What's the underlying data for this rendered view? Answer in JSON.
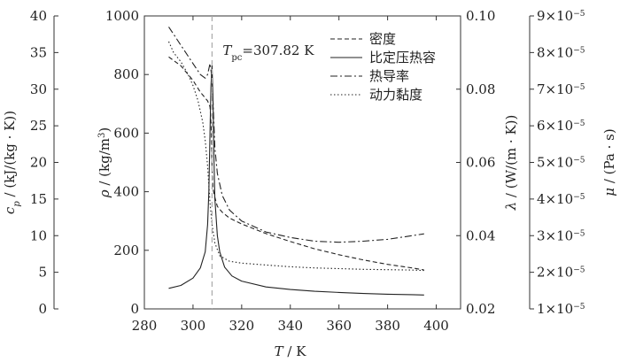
{
  "chart_data": {
    "type": "line",
    "annotation": {
      "text": "=307.82 K",
      "symbol": "T",
      "subscript": "pc",
      "x": 307.82
    },
    "xaxis": {
      "label_symbol": "T",
      "label_unit": " / K",
      "lim": [
        280,
        410
      ],
      "ticks": [
        280,
        300,
        320,
        340,
        360,
        380,
        400
      ]
    },
    "y_rho": {
      "label_symbol": "ρ",
      "label_unit": " / (kg/m",
      "label_sup": "3",
      "label_tail": ")",
      "lim": [
        0,
        1000
      ],
      "ticks": [
        0,
        200,
        400,
        600,
        800,
        1000
      ]
    },
    "y_cp": {
      "label_symbol": "c",
      "label_sub": "p",
      "label_unit": " / (kJ/(kg · K))",
      "lim": [
        0,
        40
      ],
      "ticks": [
        0,
        5,
        10,
        15,
        20,
        25,
        30,
        35,
        40
      ]
    },
    "y_lambda": {
      "label_symbol": "λ",
      "label_unit": " / (W/(m · K))",
      "lim": [
        0.02,
        0.1
      ],
      "ticks": [
        0.02,
        0.04,
        0.06,
        0.08,
        0.1
      ],
      "tick_labels": [
        "0.02",
        "0.04",
        "0.06",
        "0.08",
        "0.10"
      ]
    },
    "y_mu": {
      "label_symbol": "μ",
      "label_unit": " / (Pa · s)",
      "lim": [
        1e-05,
        9e-05
      ],
      "ticks": [
        1e-05,
        2e-05,
        3e-05,
        4e-05,
        5e-05,
        6e-05,
        7e-05,
        8e-05,
        9e-05
      ],
      "tick_mantissas": [
        "1",
        "2",
        "3",
        "4",
        "5",
        "6",
        "7",
        "8",
        "9"
      ],
      "tick_base": "×10",
      "tick_exp": "−5"
    },
    "legend": {
      "position": "top-right",
      "entries": [
        "密度",
        "比定压热容",
        "热导率",
        "动力黏度"
      ]
    },
    "series": [
      {
        "name": "密度",
        "axis": "y_rho",
        "style": "dashed",
        "x": [
          290,
          295,
          300,
          303,
          305,
          306,
          307,
          307.5,
          307.82,
          308.2,
          309,
          310,
          312,
          315,
          320,
          330,
          340,
          350,
          360,
          370,
          380,
          390,
          395
        ],
        "y": [
          860,
          830,
          780,
          740,
          720,
          710,
          690,
          620,
          480,
          410,
          380,
          350,
          330,
          310,
          290,
          257,
          230,
          205,
          185,
          167,
          152,
          140,
          133
        ]
      },
      {
        "name": "比定压热容",
        "axis": "y_cp",
        "style": "solid",
        "x": [
          290,
          295,
          300,
          303,
          305,
          306,
          306.5,
          307,
          307.4,
          307.82,
          308.2,
          308.6,
          309,
          310,
          311,
          313,
          316,
          320,
          330,
          340,
          350,
          360,
          370,
          380,
          390,
          395
        ],
        "y": [
          2.8,
          3.2,
          4.2,
          5.6,
          7.8,
          11.5,
          16.0,
          24.0,
          30.5,
          33.2,
          29.0,
          21.0,
          15.0,
          10.0,
          7.8,
          5.7,
          4.5,
          3.8,
          3.0,
          2.65,
          2.4,
          2.25,
          2.1,
          2.0,
          1.95,
          1.9
        ]
      },
      {
        "name": "热导率",
        "axis": "y_lambda",
        "style": "dashdot",
        "x": [
          290,
          295,
          300,
          303,
          305,
          306,
          307,
          307.82,
          308.5,
          309,
          310,
          312,
          315,
          320,
          330,
          340,
          350,
          360,
          370,
          380,
          390,
          395
        ],
        "y": [
          0.097,
          0.092,
          0.087,
          0.084,
          0.083,
          0.084,
          0.087,
          0.083,
          0.072,
          0.064,
          0.057,
          0.051,
          0.047,
          0.044,
          0.041,
          0.0395,
          0.0385,
          0.0382,
          0.0385,
          0.039,
          0.04,
          0.0405
        ]
      },
      {
        "name": "动力黏度",
        "axis": "y_mu",
        "style": "dotted",
        "x": [
          290,
          292,
          295,
          298,
          300,
          302,
          304,
          305,
          306,
          307,
          307.82,
          309,
          311,
          315,
          320,
          330,
          340,
          350,
          360,
          370,
          380,
          390,
          395
        ],
        "y": [
          8.3e-05,
          8e-05,
          7.75e-05,
          7.4e-05,
          7.1e-05,
          6.7e-05,
          6.1e-05,
          5.6e-05,
          4.9e-05,
          3.9e-05,
          3.3e-05,
          2.8e-05,
          2.45e-05,
          2.3e-05,
          2.25e-05,
          2.2e-05,
          2.15e-05,
          2.12e-05,
          2.1e-05,
          2.08e-05,
          2.07e-05,
          2.06e-05,
          2.05e-05
        ]
      }
    ]
  }
}
